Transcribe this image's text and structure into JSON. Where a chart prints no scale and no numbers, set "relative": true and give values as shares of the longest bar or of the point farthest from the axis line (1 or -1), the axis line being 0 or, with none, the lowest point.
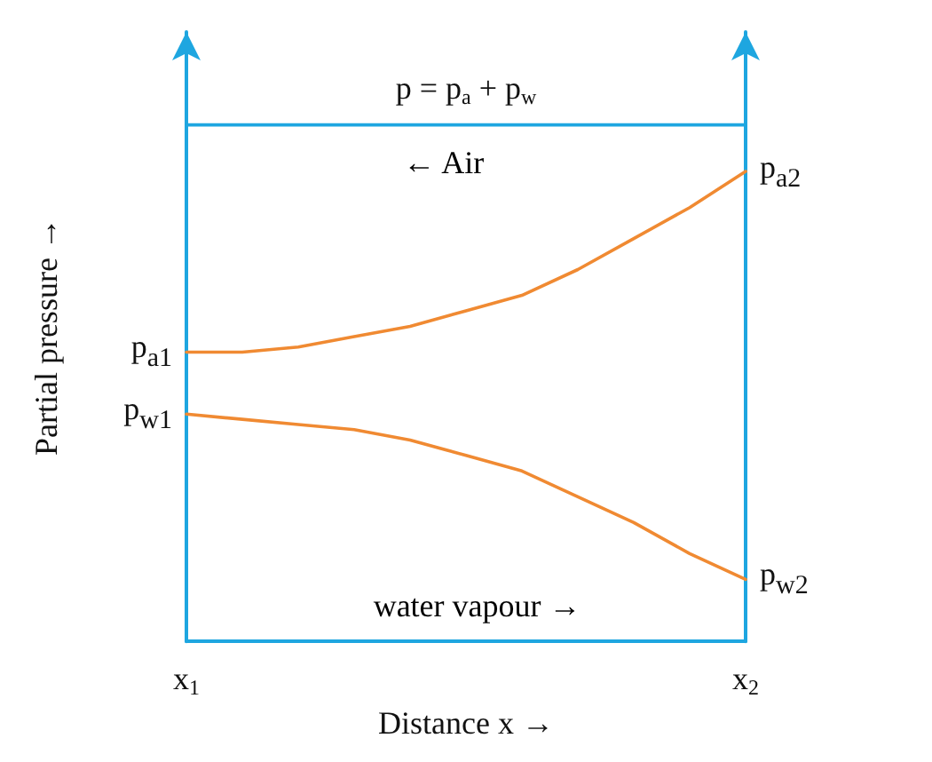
{
  "chart_data": {
    "type": "line",
    "relative": true,
    "xlabel": "Distance x →",
    "ylabel": "Partial pressure →",
    "categories": [
      "x$_{1}$",
      null,
      null,
      null,
      null,
      null,
      null,
      null,
      null,
      null,
      "x$_{2}$"
    ],
    "series": [
      {
        "name": "p = p$_{a}$ + p$_{w}$",
        "color": "#1ea6e0",
        "values": [
          1,
          1,
          1,
          1,
          1,
          1,
          1,
          1,
          1,
          1,
          1
        ]
      },
      {
        "color": "#f08a32",
        "values": [
          0.56,
          0.56,
          0.57,
          0.59,
          0.61,
          0.64,
          0.67,
          0.72,
          0.78,
          0.84,
          0.91
        ]
      },
      {
        "color": "#f08a32",
        "values": [
          0.44,
          0.43,
          0.42,
          0.41,
          0.39,
          0.36,
          0.33,
          0.28,
          0.23,
          0.17,
          0.12
        ]
      }
    ],
    "annotations": [
      "← Air",
      "water vapour →",
      {
        "text": "p$_{a1}$",
        "x": "x$_{1}$",
        "y": 0.56
      },
      {
        "text": "p$_{w1}$",
        "x": "x$_{1}$",
        "y": 0.44
      },
      {
        "text": "p$_{a2}$",
        "x": "x$_{2}$",
        "y": 0.91
      },
      {
        "text": "p$_{w2}$",
        "x": "x$_{2}$",
        "y": 0.12
      }
    ],
    "tick_labels": "x",
    "grid": false,
    "legend": false,
    "marker": "none"
  }
}
